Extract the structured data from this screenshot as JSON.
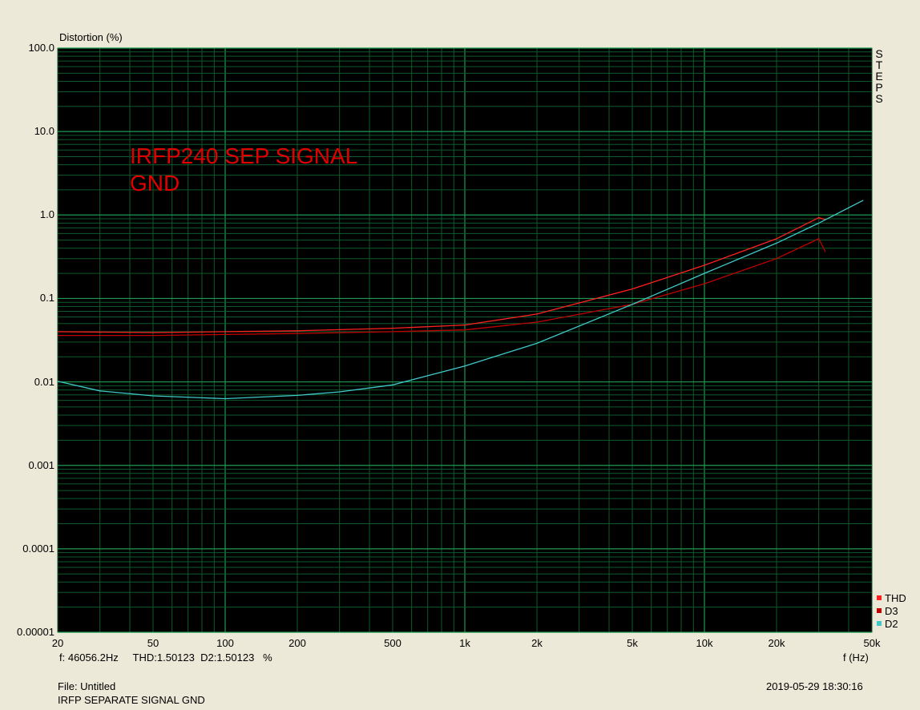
{
  "chart_data": {
    "type": "line",
    "ylabel": "Distortion (%)",
    "xlabel": "f (Hz)",
    "xscale": "log",
    "yscale": "log",
    "xlim": [
      20,
      50000
    ],
    "ylim": [
      1e-05,
      100
    ],
    "yticks": [
      "100.0",
      "10.0",
      "1.0",
      "0.1",
      "0.01",
      "0.001",
      "0.0001",
      "0.00001"
    ],
    "xticks": [
      {
        "v": 20,
        "t": "20"
      },
      {
        "v": 50,
        "t": "50"
      },
      {
        "v": 100,
        "t": "100"
      },
      {
        "v": 200,
        "t": "200"
      },
      {
        "v": 500,
        "t": "500"
      },
      {
        "v": 1000,
        "t": "1k"
      },
      {
        "v": 2000,
        "t": "2k"
      },
      {
        "v": 5000,
        "t": "5k"
      },
      {
        "v": 10000,
        "t": "10k"
      },
      {
        "v": 20000,
        "t": "20k"
      },
      {
        "v": 50000,
        "t": "50k"
      }
    ],
    "grid": true,
    "legend_position": "bottom-right",
    "annotation": "IRFP240 SEP SIGNAL\nGND",
    "side_label": "STEPS",
    "series": [
      {
        "name": "THD",
        "color": "#ff2020",
        "x": [
          20,
          50,
          100,
          200,
          500,
          1000,
          2000,
          5000,
          10000,
          20000,
          30000,
          32000
        ],
        "y": [
          0.04,
          0.039,
          0.04,
          0.041,
          0.044,
          0.048,
          0.065,
          0.13,
          0.25,
          0.52,
          0.93,
          0.88
        ]
      },
      {
        "name": "D3",
        "color": "#c00000",
        "x": [
          20,
          50,
          100,
          200,
          500,
          1000,
          2000,
          5000,
          10000,
          20000,
          30000,
          32000
        ],
        "y": [
          0.036,
          0.036,
          0.037,
          0.038,
          0.04,
          0.042,
          0.052,
          0.085,
          0.15,
          0.3,
          0.52,
          0.36
        ]
      },
      {
        "name": "D2",
        "color": "#40c8c8",
        "x": [
          20,
          30,
          50,
          100,
          200,
          300,
          500,
          1000,
          2000,
          5000,
          10000,
          20000,
          30000,
          46000
        ],
        "y": [
          0.0102,
          0.0078,
          0.0068,
          0.0063,
          0.0069,
          0.0076,
          0.0092,
          0.0155,
          0.029,
          0.085,
          0.2,
          0.46,
          0.8,
          1.5
        ]
      }
    ]
  },
  "footer": {
    "cursor": "f: 46056.2Hz     THD:1.50123  D2:1.50123   %",
    "file": "File: Untitled",
    "description": "IRFP SEPARATE SIGNAL GND",
    "timestamp": "2019-05-29 18:30:16"
  }
}
